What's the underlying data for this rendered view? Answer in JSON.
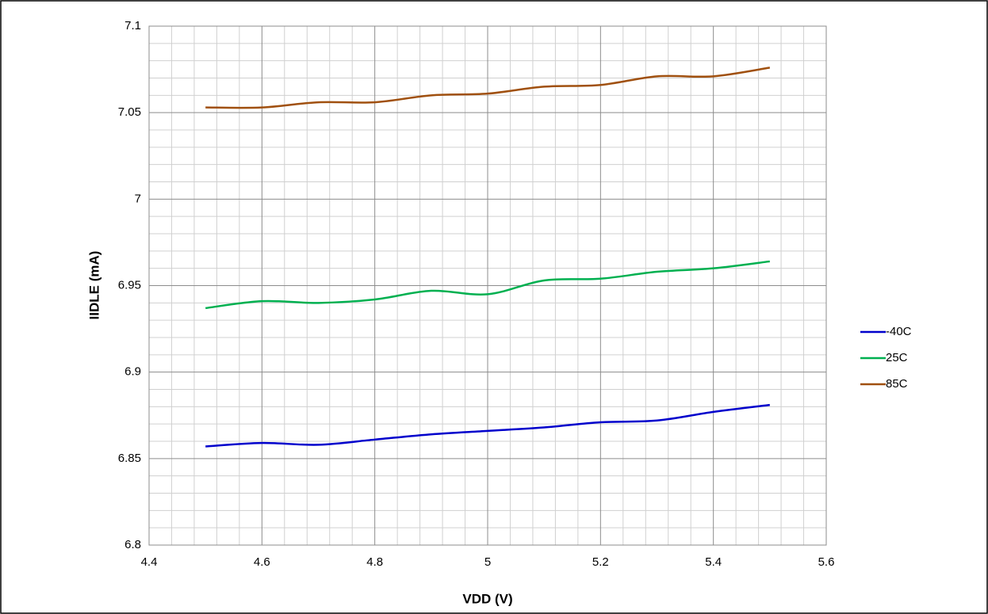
{
  "chart_data": {
    "type": "line",
    "xlabel": "VDD (V)",
    "ylabel": "IIDLE (mA)",
    "x": [
      4.5,
      4.6,
      4.7,
      4.8,
      4.9,
      5.0,
      5.1,
      5.2,
      5.3,
      5.4,
      5.5
    ],
    "series": [
      {
        "name": "-40C",
        "color": "#0000cc",
        "values": [
          6.857,
          6.859,
          6.858,
          6.861,
          6.864,
          6.866,
          6.868,
          6.871,
          6.872,
          6.877,
          6.881
        ]
      },
      {
        "name": "25C",
        "color": "#00b050",
        "values": [
          6.937,
          6.941,
          6.94,
          6.942,
          6.947,
          6.945,
          6.953,
          6.954,
          6.958,
          6.96,
          6.964
        ]
      },
      {
        "name": "85C",
        "color": "#a0500f",
        "values": [
          7.053,
          7.053,
          7.056,
          7.056,
          7.06,
          7.061,
          7.065,
          7.066,
          7.071,
          7.071,
          7.076
        ]
      }
    ],
    "xlim": [
      4.4,
      5.6
    ],
    "xticks": [
      4.4,
      4.6,
      4.8,
      5,
      5.2,
      5.4,
      5.6
    ],
    "ylim": [
      6.8,
      7.1
    ],
    "yticks": [
      6.8,
      6.85,
      6.9,
      6.95,
      7,
      7.05,
      7.1
    ],
    "grid": true,
    "minor_grid": true,
    "legend": "right"
  }
}
